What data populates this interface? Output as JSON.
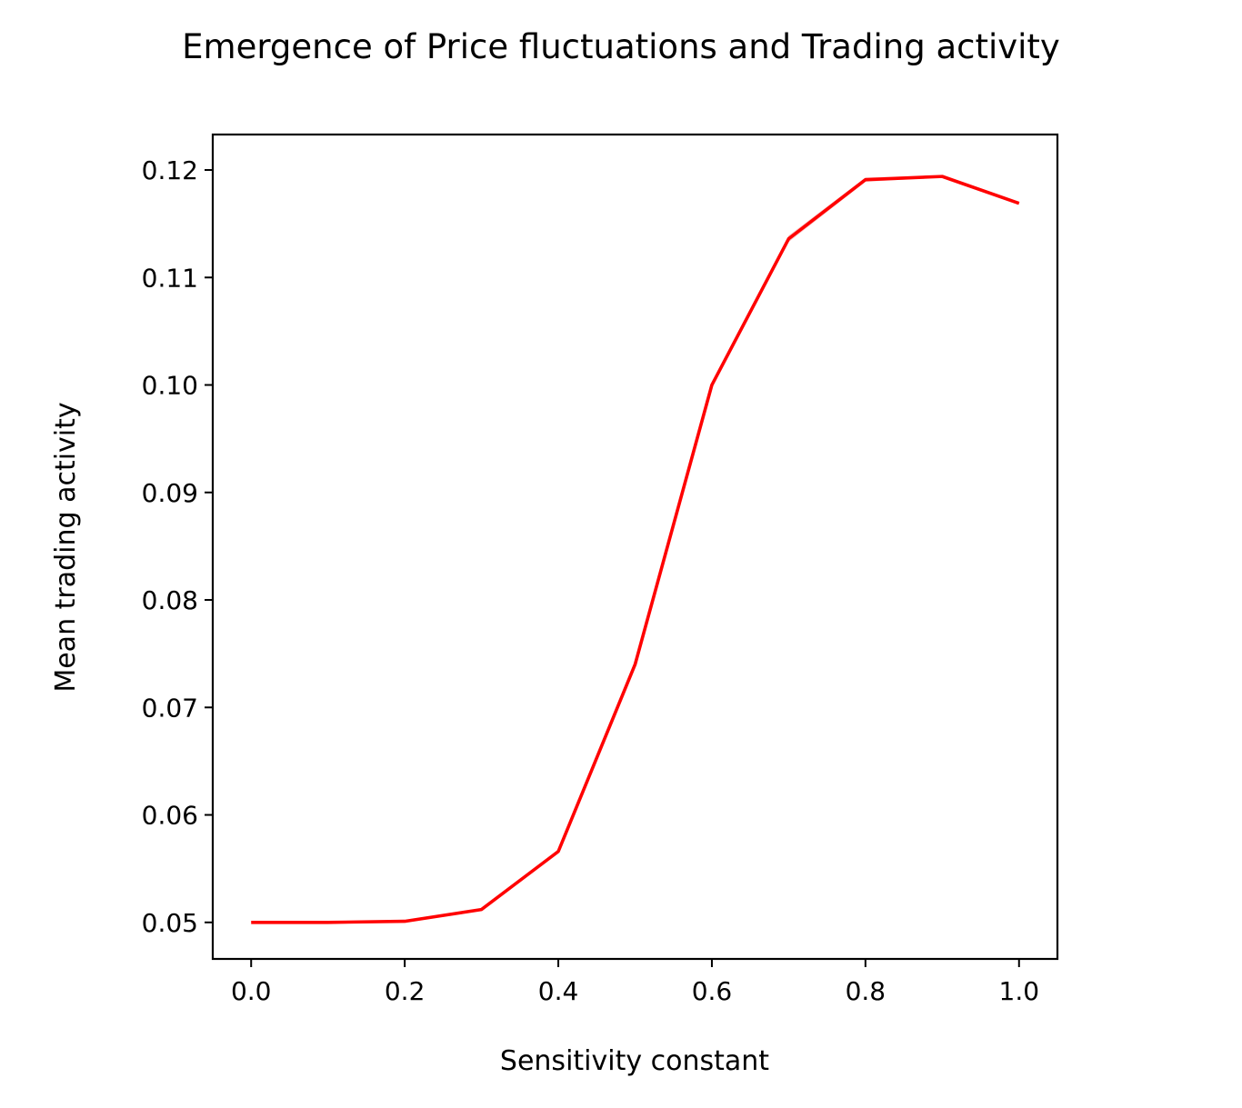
{
  "chart_data": {
    "type": "line",
    "title": "Emergence of Price fluctuations and Trading activity",
    "xlabel": "Sensitivity constant",
    "ylabel": "Mean trading activity",
    "x": [
      0.0,
      0.1,
      0.2,
      0.3,
      0.4,
      0.5,
      0.6,
      0.7,
      0.8,
      0.9,
      1.0
    ],
    "series": [
      {
        "values": [
          0.05,
          0.05,
          0.0501,
          0.0512,
          0.0566,
          0.074,
          0.1,
          0.1136,
          0.1191,
          0.1194,
          0.1169
        ],
        "band_halfwidth": [
          0.0,
          0.0,
          0.0,
          0.0001,
          0.0002,
          0.0003,
          0.0002,
          0.0003,
          0.0002,
          0.0001,
          0.0001
        ],
        "color": "#ff0000",
        "band_color": "#f4a0a0"
      }
    ],
    "xlim": [
      -0.05,
      1.05
    ],
    "ylim": [
      0.0466,
      0.1233
    ],
    "xticks": [
      0.0,
      0.2,
      0.4,
      0.6,
      0.8,
      1.0
    ],
    "xtick_labels": [
      "0.0",
      "0.2",
      "0.4",
      "0.6",
      "0.8",
      "1.0"
    ],
    "yticks": [
      0.05,
      0.06,
      0.07,
      0.08,
      0.09,
      0.1,
      0.11,
      0.12
    ],
    "ytick_labels": [
      "0.05",
      "0.06",
      "0.07",
      "0.08",
      "0.09",
      "0.10",
      "0.11",
      "0.12"
    ],
    "grid": false,
    "legend": "none"
  }
}
